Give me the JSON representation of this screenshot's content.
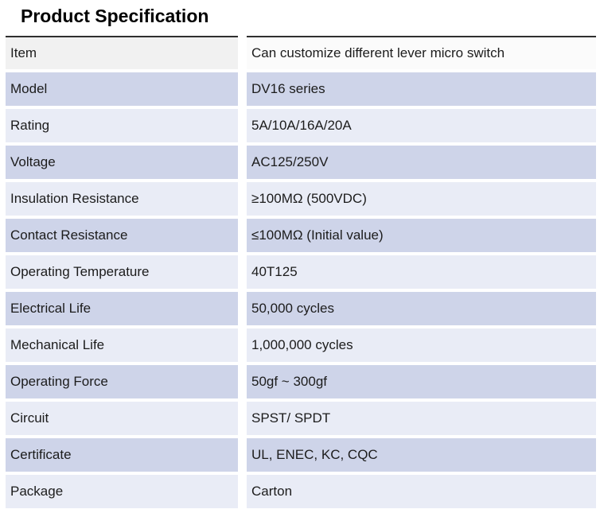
{
  "page": {
    "title": "Product Specification"
  },
  "table": {
    "rows": [
      {
        "label": "Item",
        "value": "Can customize different lever micro switch"
      },
      {
        "label": "Model",
        "value": "DV16 series"
      },
      {
        "label": "Rating",
        "value": "5A/10A/16A/20A"
      },
      {
        "label": "Voltage",
        "value": "AC125/250V"
      },
      {
        "label": "Insulation Resistance",
        "value": "≥100MΩ (500VDC)"
      },
      {
        "label": "Contact Resistance",
        "value": "≤100MΩ (Initial value)"
      },
      {
        "label": "Operating Temperature",
        "value": "40T125"
      },
      {
        "label": "Electrical Life",
        "value": "50,000 cycles"
      },
      {
        "label": "Mechanical Life",
        "value": "1,000,000 cycles"
      },
      {
        "label": "Operating Force",
        "value": "50gf ~ 300gf"
      },
      {
        "label": "Circuit",
        "value": "SPST/ SPDT"
      },
      {
        "label": "Certificate",
        "value": "UL, ENEC, KC, CQC"
      },
      {
        "label": "Package",
        "value": "Carton"
      }
    ]
  },
  "colors": {
    "row_medium": "#ced4e9",
    "row_light": "#e9ecf6",
    "header_left": "#f1f1f1",
    "header_right": "#fbfbfb",
    "top_border": "#2f2f2f",
    "text": "#1c1c1c"
  }
}
